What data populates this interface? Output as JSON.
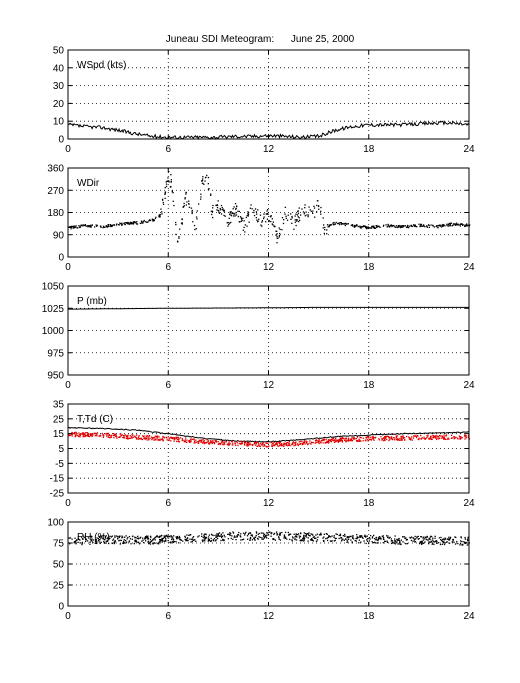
{
  "title": "Juneau SDI Meteogram:      June 25, 2000",
  "chart_data": [
    {
      "type": "line",
      "label": "WSpd (kts)",
      "xlim": [
        0,
        24
      ],
      "xticks": [
        0,
        6,
        12,
        18,
        24
      ],
      "ylim": [
        0,
        50
      ],
      "yticks": [
        0,
        10,
        20,
        30,
        40,
        50
      ],
      "grid": true,
      "series": [
        {
          "values": [
            [
              0,
              8
            ],
            [
              1,
              7
            ],
            [
              2,
              6.5
            ],
            [
              3,
              5
            ],
            [
              4,
              3
            ],
            [
              5,
              1.5
            ],
            [
              6,
              1
            ],
            [
              7,
              1
            ],
            [
              8,
              1
            ],
            [
              9,
              1
            ],
            [
              10,
              1.5
            ],
            [
              11,
              1.5
            ],
            [
              12,
              2
            ],
            [
              13,
              1.5
            ],
            [
              14,
              1
            ],
            [
              15,
              1.5
            ],
            [
              16,
              5
            ],
            [
              17,
              7
            ],
            [
              18,
              8
            ],
            [
              19,
              8
            ],
            [
              20,
              8
            ],
            [
              21,
              8.5
            ],
            [
              22,
              9
            ],
            [
              23,
              9
            ],
            [
              24,
              8
            ]
          ],
          "color": "#000000",
          "style": "line"
        }
      ]
    },
    {
      "type": "scatter",
      "label": "WDir",
      "xlim": [
        0,
        24
      ],
      "xticks": [
        0,
        6,
        12,
        18,
        24
      ],
      "ylim": [
        0,
        360
      ],
      "yticks": [
        0,
        90,
        180,
        270,
        360
      ],
      "grid": true,
      "series": [
        {
          "values": [
            [
              0,
              120
            ],
            [
              1,
              130
            ],
            [
              2,
              125
            ],
            [
              3,
              135
            ],
            [
              4,
              140
            ],
            [
              5,
              150
            ],
            [
              5.5,
              170
            ],
            [
              6,
              330
            ],
            [
              6.2,
              290
            ],
            [
              6.5,
              60
            ],
            [
              6.8,
              160
            ],
            [
              7,
              240
            ],
            [
              7.3,
              200
            ],
            [
              7.6,
              120
            ],
            [
              8,
              300
            ],
            [
              8.3,
              340
            ],
            [
              8.6,
              180
            ],
            [
              9,
              210
            ],
            [
              9.5,
              140
            ],
            [
              10,
              200
            ],
            [
              10.5,
              120
            ],
            [
              11,
              200
            ],
            [
              11.5,
              150
            ],
            [
              12,
              170
            ],
            [
              12.5,
              80
            ],
            [
              13,
              190
            ],
            [
              13.5,
              140
            ],
            [
              14,
              200
            ],
            [
              14.5,
              170
            ],
            [
              15,
              210
            ],
            [
              15.3,
              120
            ],
            [
              16,
              140
            ],
            [
              17,
              130
            ],
            [
              18,
              120
            ],
            [
              19,
              130
            ],
            [
              20,
              125
            ],
            [
              21,
              130
            ],
            [
              22,
              125
            ],
            [
              23,
              135
            ],
            [
              24,
              130
            ]
          ],
          "color": "#000000",
          "style": "dots"
        }
      ]
    },
    {
      "type": "line",
      "label": "P (mb)",
      "xlim": [
        0,
        24
      ],
      "xticks": [
        0,
        6,
        12,
        18,
        24
      ],
      "ylim": [
        950,
        1050
      ],
      "yticks": [
        950,
        975,
        1000,
        1025,
        1050
      ],
      "grid": true,
      "series": [
        {
          "values": [
            [
              0,
              1024
            ],
            [
              6,
              1025
            ],
            [
              12,
              1025.5
            ],
            [
              15,
              1026
            ],
            [
              18,
              1026
            ],
            [
              24,
              1026
            ]
          ],
          "color": "#000000",
          "style": "line"
        }
      ]
    },
    {
      "type": "line",
      "label": "T,Td (C)",
      "xlim": [
        0,
        24
      ],
      "xticks": [
        0,
        6,
        12,
        18,
        24
      ],
      "ylim": [
        -25,
        35
      ],
      "yticks": [
        -25,
        -15,
        -5,
        5,
        15,
        25,
        35
      ],
      "grid": true,
      "series": [
        {
          "values": [
            [
              0,
              19
            ],
            [
              2,
              18.5
            ],
            [
              4,
              17.5
            ],
            [
              6,
              15
            ],
            [
              8,
              12
            ],
            [
              10,
              10
            ],
            [
              12,
              9.5
            ],
            [
              14,
              11
            ],
            [
              16,
              13
            ],
            [
              18,
              14
            ],
            [
              20,
              15
            ],
            [
              22,
              15.5
            ],
            [
              24,
              16
            ]
          ],
          "color": "#000000",
          "style": "line"
        },
        {
          "values": [
            [
              0,
              15
            ],
            [
              2,
              14.5
            ],
            [
              4,
              13
            ],
            [
              6,
              12
            ],
            [
              8,
              10
            ],
            [
              10,
              9
            ],
            [
              12,
              8
            ],
            [
              14,
              9
            ],
            [
              16,
              11
            ],
            [
              18,
              12
            ],
            [
              20,
              12.5
            ],
            [
              22,
              13
            ],
            [
              24,
              13
            ]
          ],
          "color": "#e00000",
          "style": "dots"
        }
      ]
    },
    {
      "type": "scatter",
      "label": "RH (%)",
      "xlim": [
        0,
        24
      ],
      "xticks": [
        0,
        6,
        12,
        18,
        24
      ],
      "ylim": [
        0,
        100
      ],
      "yticks": [
        0,
        25,
        50,
        75,
        100
      ],
      "grid": true,
      "series": [
        {
          "values": [
            [
              0,
              78
            ],
            [
              2,
              80
            ],
            [
              4,
              79
            ],
            [
              6,
              80
            ],
            [
              8,
              82
            ],
            [
              10,
              84
            ],
            [
              12,
              84
            ],
            [
              14,
              83
            ],
            [
              16,
              82
            ],
            [
              18,
              80
            ],
            [
              20,
              79
            ],
            [
              22,
              79
            ],
            [
              24,
              78
            ]
          ],
          "color": "#000000",
          "style": "dots"
        }
      ]
    }
  ]
}
